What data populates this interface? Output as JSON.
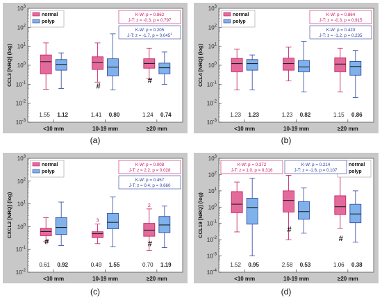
{
  "figure": {
    "panel_letters": [
      "(a)",
      "(b)",
      "(c)",
      "(d)"
    ],
    "colors": {
      "normal_fill": "#e36b9c",
      "normal_stroke": "#c2185b",
      "polyp_fill": "#7fb2ea",
      "polyp_stroke": "#2a3f9e",
      "panel_bg": "#c8c8c8",
      "plot_bg": "#ffffff",
      "kw_text": "#c2185b",
      "jt_text": "#2a3f9e"
    }
  },
  "chart_data": [
    {
      "type": "box",
      "panel": "(a)",
      "ylabel": "CCL3 [NRQ] (log)",
      "ylim_log10": [
        -3,
        3
      ],
      "y_tick_labels": [
        "10-3",
        "10-2",
        "10-1",
        "100",
        "101",
        "102",
        "103"
      ],
      "categories": [
        "<10 mm",
        "10-19 mm",
        "≥20 mm"
      ],
      "legend": [
        "normal",
        "polyp"
      ],
      "stats": {
        "kw": "K-W: p = 0.862",
        "jt_normal": "J-T: z = -0.3, p = 0.797",
        "kw_polyp": "K-W: p = 0.205",
        "jt_polyp": "J-T: z = -1.7, p = 0.045",
        "jt_polyp_note": "1"
      },
      "series": [
        {
          "name": "normal",
          "boxes": [
            {
              "whislo": 0.055,
              "q1": 0.35,
              "med": 1.55,
              "q3": 3.5,
              "whishi": 15
            },
            {
              "whislo": 0.13,
              "q1": 0.6,
              "med": 1.41,
              "q3": 2.8,
              "whishi": 15
            },
            {
              "whislo": 0.2,
              "q1": 0.7,
              "med": 1.24,
              "q3": 2.2,
              "whishi": 8
            }
          ]
        },
        {
          "name": "polyp",
          "boxes": [
            {
              "whislo": 0.06,
              "q1": 0.55,
              "med": 1.12,
              "q3": 2.0,
              "whishi": 4.5
            },
            {
              "whislo": 0.05,
              "q1": 0.28,
              "med": 0.8,
              "q3": 2.2,
              "whishi": 45
            },
            {
              "whislo": 0.1,
              "q1": 0.35,
              "med": 0.74,
              "q3": 1.3,
              "whishi": 5
            }
          ]
        }
      ],
      "median_labels": [
        [
          "1.55",
          "1.12"
        ],
        [
          "1.41",
          "0.80"
        ],
        [
          "1.24",
          "0.74"
        ]
      ],
      "markers": [
        {
          "category": 1,
          "text": "#"
        },
        {
          "category": 2,
          "text": "#"
        }
      ]
    },
    {
      "type": "box",
      "panel": "(b)",
      "ylabel": "CCL4 [NRQ] (log)",
      "ylim_log10": [
        -3,
        3
      ],
      "y_tick_labels": [
        "10-3",
        "10-2",
        "10-1",
        "100",
        "101",
        "102",
        "103"
      ],
      "categories": [
        "<10 mm",
        "10-19 mm",
        "≥20 mm"
      ],
      "legend": [
        "normal",
        "polyp"
      ],
      "stats": {
        "kw": "K-W: p = 0.864",
        "jt_normal": "J-T: z = -0.3, p = 0.915",
        "kw_polyp": "K-W: p = 0.420",
        "jt_polyp": "J-T: z = -1.2, p = 0.235",
        "jt_polyp_note": ""
      },
      "series": [
        {
          "name": "normal",
          "boxes": [
            {
              "whislo": 0.05,
              "q1": 0.45,
              "med": 1.23,
              "q3": 2.3,
              "whishi": 7
            },
            {
              "whislo": 0.15,
              "q1": 0.55,
              "med": 1.23,
              "q3": 2.4,
              "whishi": 9
            },
            {
              "whislo": 0.04,
              "q1": 0.45,
              "med": 1.15,
              "q3": 2.5,
              "whishi": 8
            }
          ]
        },
        {
          "name": "polyp",
          "boxes": [
            {
              "whislo": 0.05,
              "q1": 0.55,
              "med": 1.23,
              "q3": 2.0,
              "whishi": 3.5
            },
            {
              "whislo": 0.04,
              "q1": 0.45,
              "med": 0.82,
              "q3": 1.8,
              "whishi": 18
            },
            {
              "whislo": 0.02,
              "q1": 0.3,
              "med": 0.86,
              "q3": 1.6,
              "whishi": 6
            }
          ]
        }
      ],
      "median_labels": [
        [
          "1.23",
          "1.23"
        ],
        [
          "1.23",
          "0.82"
        ],
        [
          "1.15",
          "0.86"
        ]
      ],
      "markers": []
    },
    {
      "type": "box",
      "panel": "(c)",
      "ylabel": "CXCL2 [NRQ] (log)",
      "ylim_log10": [
        -2,
        3
      ],
      "y_tick_labels": [
        "10-2",
        "10-1",
        "100",
        "101",
        "102",
        "103"
      ],
      "categories": [
        "<10 mm",
        "10-19 mm",
        "≥20 mm"
      ],
      "legend": [
        "normal",
        "polyp"
      ],
      "stats": {
        "kw": "K-W: p = 0.008",
        "jt_normal": "J-T: z = 2.2, p = 0.028",
        "kw_polyp": "K-W: p = 0.457",
        "jt_polyp": "J-T: z = 0.4, p = 0.660",
        "jt_polyp_note": ""
      },
      "series": [
        {
          "name": "normal",
          "boxes": [
            {
              "whislo": 0.22,
              "q1": 0.4,
              "med": 0.61,
              "q3": 0.85,
              "whishi": 2.5
            },
            {
              "whislo": 0.18,
              "q1": 0.33,
              "med": 0.49,
              "q3": 0.6,
              "whishi": 1.3
            },
            {
              "whislo": 0.09,
              "q1": 0.38,
              "med": 0.7,
              "q3": 1.4,
              "whishi": 6
            }
          ]
        },
        {
          "name": "polyp",
          "boxes": [
            {
              "whislo": 0.15,
              "q1": 0.45,
              "med": 0.92,
              "q3": 2.5,
              "whishi": 12
            },
            {
              "whislo": 0.13,
              "q1": 0.8,
              "med": 1.55,
              "q3": 3.8,
              "whishi": 20
            },
            {
              "whislo": 0.12,
              "q1": 0.55,
              "med": 1.19,
              "q3": 2.8,
              "whishi": 8
            }
          ]
        }
      ],
      "median_labels": [
        [
          "0.61",
          "0.92"
        ],
        [
          "0.49",
          "1.55"
        ],
        [
          "0.70",
          "1.19"
        ]
      ],
      "markers": [
        {
          "category": 0,
          "text": "#"
        },
        {
          "category": 2,
          "text": "#"
        }
      ],
      "outlier_labels": [
        {
          "category": 1,
          "text": "3"
        },
        {
          "category": 2,
          "text": "2"
        }
      ]
    },
    {
      "type": "box",
      "panel": "(d)",
      "ylabel": "CCL19 [NRQ] (log)",
      "ylim_log10": [
        -4,
        3
      ],
      "y_tick_labels": [
        "10-4",
        "10-3",
        "10-2",
        "10-1",
        "100",
        "101",
        "102",
        "103"
      ],
      "categories": [
        "<10 mm",
        "10-19 mm",
        "≥20 mm"
      ],
      "legend": [
        "normal",
        "polyp"
      ],
      "stats": {
        "kw": "K-W: p = 0.372",
        "jt_normal": "J-T: z = 1.0, p = 0.316",
        "kw_polyp": "K-W: p = 0.214",
        "jt_polyp": "J-T: z = -1.6, p = 0.107",
        "jt_polyp_note": ""
      },
      "series": [
        {
          "name": "normal",
          "boxes": [
            {
              "whislo": 0.03,
              "q1": 0.45,
              "med": 1.52,
              "q3": 9,
              "whishi": 35
            },
            {
              "whislo": 0.01,
              "q1": 0.5,
              "med": 2.58,
              "q3": 10,
              "whishi": 90
            },
            {
              "whislo": 0.05,
              "q1": 0.35,
              "med": 1.06,
              "q3": 5,
              "whishi": 100
            }
          ]
        },
        {
          "name": "polyp",
          "boxes": [
            {
              "whislo": 0.001,
              "q1": 0.09,
              "med": 0.95,
              "q3": 3.5,
              "whishi": 60
            },
            {
              "whislo": 0.025,
              "q1": 0.18,
              "med": 0.53,
              "q3": 2.2,
              "whishi": 15
            },
            {
              "whislo": 0.007,
              "q1": 0.11,
              "med": 0.38,
              "q3": 1.5,
              "whishi": 10
            }
          ]
        }
      ],
      "median_labels": [
        [
          "1.52",
          "0.95"
        ],
        [
          "2.58",
          "0.53"
        ],
        [
          "1.06",
          "0.38"
        ]
      ],
      "markers": [
        {
          "category": 1,
          "text": "#"
        },
        {
          "category": 2,
          "text": "#"
        }
      ]
    }
  ]
}
